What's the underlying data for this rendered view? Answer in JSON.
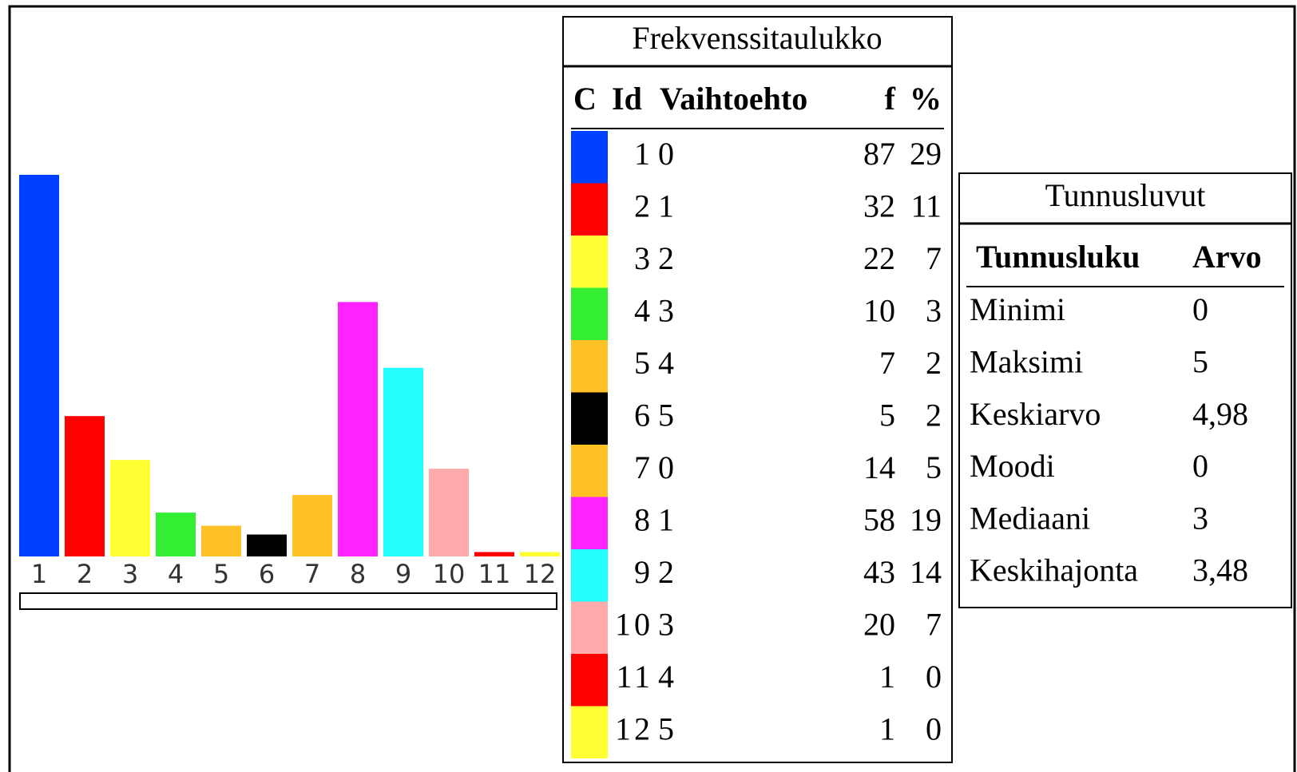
{
  "chart_data": {
    "type": "bar",
    "categories": [
      1,
      2,
      3,
      4,
      5,
      6,
      7,
      8,
      9,
      10,
      11,
      12
    ],
    "values": [
      87,
      32,
      22,
      10,
      7,
      5,
      14,
      58,
      43,
      20,
      1,
      1
    ],
    "colors": [
      "#0040ff",
      "#ff0000",
      "#ffff33",
      "#33ee33",
      "#ffc125",
      "#000000",
      "#ffc125",
      "#ff22ff",
      "#22ffff",
      "#ffaaaa",
      "#ff0000",
      "#ffff33"
    ]
  },
  "frequency_table": {
    "title": "Frekvenssitaulukko",
    "columns": [
      "C",
      "Id",
      "Vaihtoehto",
      "f",
      "%"
    ],
    "rows": [
      {
        "option": 0,
        "percent": 29
      },
      {
        "option": 1,
        "percent": 11
      },
      {
        "option": 2,
        "percent": 7
      },
      {
        "option": 3,
        "percent": 3
      },
      {
        "option": 4,
        "percent": 2
      },
      {
        "option": 5,
        "percent": 2
      },
      {
        "option": 0,
        "percent": 5
      },
      {
        "option": 1,
        "percent": 19
      },
      {
        "option": 2,
        "percent": 14
      },
      {
        "option": 3,
        "percent": 7
      },
      {
        "option": 4,
        "percent": 0
      },
      {
        "option": 5,
        "percent": 0
      }
    ]
  },
  "statistics": {
    "title": "Tunnusluvut",
    "columns": [
      "Tunnusluku",
      "Arvo"
    ],
    "rows": [
      {
        "label": "Minimi",
        "value": 0
      },
      {
        "label": "Maksimi",
        "value": 5
      },
      {
        "label": "Keskiarvo",
        "value": "4,98"
      },
      {
        "label": "Moodi",
        "value": 0
      },
      {
        "label": "Mediaani",
        "value": 3
      },
      {
        "label": "Keskihajonta",
        "value": "3,48"
      }
    ]
  }
}
